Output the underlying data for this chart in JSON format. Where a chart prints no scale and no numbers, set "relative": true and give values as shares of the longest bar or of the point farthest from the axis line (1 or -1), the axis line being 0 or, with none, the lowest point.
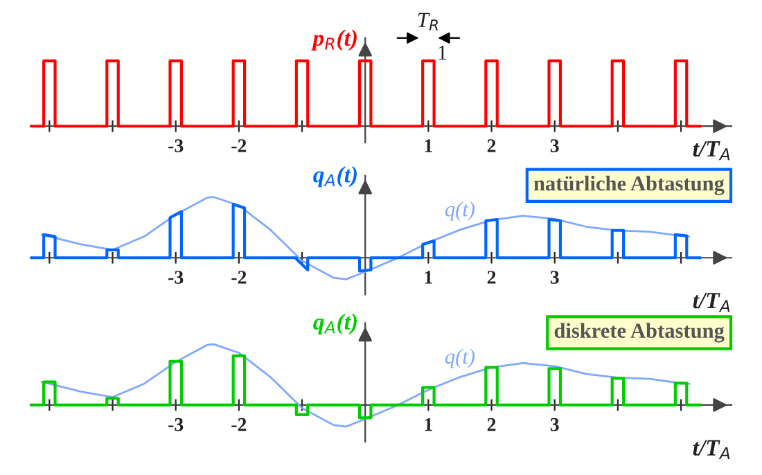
{
  "chart_data": [
    {
      "type": "line",
      "relative": true,
      "ylabel": "p$_{R}$(t)",
      "xlabel": "t/T$_{A}$",
      "xlim": [
        -5.3,
        5.8
      ],
      "xticks": [
        {
          "value": -5,
          "label": null
        },
        {
          "value": -4,
          "label": null
        },
        {
          "value": -3,
          "label": "-3"
        },
        {
          "value": -2,
          "label": "-2"
        },
        {
          "value": -1,
          "label": null
        },
        1,
        2,
        3,
        {
          "value": 4,
          "label": null
        },
        {
          "value": 5,
          "label": null
        }
      ],
      "annotations": [
        "T$_{R}$",
        "1"
      ],
      "series": [
        {
          "color": "#ff0000",
          "x": [
            -5.3,
            -5.09,
            -5.09,
            -4.91,
            -4.91,
            -4.09,
            -4.09,
            -3.91,
            -3.91,
            -3.09,
            -3.09,
            -2.91,
            -2.91,
            -2.09,
            -2.09,
            -1.91,
            -1.91,
            -1.09,
            -1.09,
            -0.91,
            -0.91,
            -0.09,
            -0.09,
            0.09,
            0.09,
            0.91,
            0.91,
            1.09,
            1.09,
            1.91,
            1.91,
            2.09,
            2.09,
            2.91,
            2.91,
            3.09,
            3.09,
            3.91,
            3.91,
            4.09,
            4.09,
            4.91,
            4.91,
            5.09,
            5.09,
            5.3
          ],
          "values": [
            0,
            0,
            1,
            1,
            0,
            0,
            1,
            1,
            0,
            0,
            1,
            1,
            0,
            0,
            1,
            1,
            0,
            0,
            1,
            1,
            0,
            0,
            1,
            1,
            0,
            0,
            1,
            1,
            0,
            0,
            1,
            1,
            0,
            0,
            1,
            1,
            0,
            0,
            1,
            1,
            0,
            0,
            1,
            1,
            0,
            0
          ]
        }
      ]
    },
    {
      "type": "line",
      "relative": true,
      "title": "natürliche Abtastung",
      "ylabel": "q$_{A}$(t)",
      "xlabel": "t/T$_{A}$",
      "xlim": [
        -5.3,
        5.8
      ],
      "xticks": [
        {
          "value": -5,
          "label": null
        },
        {
          "value": -4,
          "label": null
        },
        {
          "value": -3,
          "label": "-3"
        },
        {
          "value": -2,
          "label": "-2"
        },
        {
          "value": -1,
          "label": null
        },
        1,
        2,
        3,
        {
          "value": 4,
          "label": null
        },
        {
          "value": 5,
          "label": null
        }
      ],
      "series": [
        {
          "name": "q(t)",
          "color": "#7fa8ff",
          "x": [
            -5.12,
            -5,
            -4.5,
            -4,
            -3.5,
            -3,
            -2.5,
            -2.4,
            -2,
            -1.5,
            -1,
            -0.5,
            -0.3,
            0,
            0.5,
            1,
            1.5,
            2,
            2.5,
            3,
            3.5,
            4,
            4.5,
            5,
            5.13
          ],
          "values": [
            0.38,
            0.35,
            0.22,
            0.13,
            0.35,
            0.71,
            0.99,
            1,
            0.86,
            0.46,
            -0.05,
            -0.33,
            -0.355,
            -0.23,
            -0.01,
            0.25,
            0.46,
            0.62,
            0.69,
            0.64,
            0.51,
            0.45,
            0.43,
            0.36,
            0.35
          ]
        },
        {
          "color": "#0066ff",
          "x": [
            -5.3,
            -5.09,
            -5.09,
            -4.91,
            -4.91,
            -4.09,
            -4.09,
            -3.91,
            -3.91,
            -3.09,
            -3.09,
            -2.91,
            -2.91,
            -2.09,
            -2.09,
            -1.91,
            -1.91,
            -1.09,
            -1.09,
            -0.91,
            -0.91,
            -0.09,
            -0.09,
            0.09,
            0.09,
            0.91,
            0.91,
            1.09,
            1.09,
            1.91,
            1.91,
            2.09,
            2.09,
            2.91,
            2.91,
            3.09,
            3.09,
            3.91,
            3.91,
            4.09,
            4.09,
            4.91,
            4.91,
            5.09,
            5.09,
            5.3
          ],
          "values": [
            0,
            0,
            0.38,
            0.35,
            0,
            0,
            0.13,
            0.13,
            0,
            0,
            0.66,
            0.76,
            0,
            0,
            0.88,
            0.82,
            0,
            0,
            -0.02,
            -0.2,
            0,
            0,
            -0.22,
            -0.2,
            0,
            0,
            0.22,
            0.28,
            0,
            0,
            0.61,
            0.63,
            0,
            0,
            0.63,
            0.61,
            0,
            0,
            0.45,
            0.45,
            0,
            0,
            0.38,
            0.36,
            0,
            0
          ]
        }
      ]
    },
    {
      "type": "line",
      "relative": true,
      "title": "diskrete Abtastung",
      "ylabel": "q$_{A}$(t)",
      "xlabel": "t/T$_{A}$",
      "xlim": [
        -5.3,
        5.8
      ],
      "xticks": [
        {
          "value": -5,
          "label": null
        },
        {
          "value": -4,
          "label": null
        },
        {
          "value": -3,
          "label": "-3"
        },
        {
          "value": -2,
          "label": "-2"
        },
        {
          "value": -1,
          "label": null
        },
        1,
        2,
        3,
        {
          "value": 4,
          "label": null
        },
        {
          "value": 5,
          "label": null
        }
      ],
      "series": [
        {
          "name": "q(t)",
          "color": "#7fa8ff",
          "x": [
            -5.12,
            -5,
            -4.5,
            -4,
            -3.5,
            -3,
            -2.5,
            -2.4,
            -2,
            -1.5,
            -1,
            -0.5,
            -0.3,
            0,
            0.5,
            1,
            1.5,
            2,
            2.5,
            3,
            3.5,
            4,
            4.5,
            5,
            5.13
          ],
          "values": [
            0.38,
            0.35,
            0.22,
            0.13,
            0.35,
            0.71,
            0.99,
            1,
            0.86,
            0.46,
            -0.05,
            -0.33,
            -0.355,
            -0.23,
            -0.01,
            0.25,
            0.46,
            0.62,
            0.69,
            0.64,
            0.51,
            0.45,
            0.43,
            0.36,
            0.35
          ]
        },
        {
          "color": "#00cc00",
          "x": [
            -5.3,
            -5.09,
            -5.09,
            -4.91,
            -4.91,
            -4.09,
            -4.09,
            -3.91,
            -3.91,
            -3.09,
            -3.09,
            -2.91,
            -2.91,
            -2.09,
            -2.09,
            -1.91,
            -1.91,
            -1.09,
            -1.09,
            -0.91,
            -0.91,
            -0.09,
            -0.09,
            0.09,
            0.09,
            0.91,
            0.91,
            1.09,
            1.09,
            1.91,
            1.91,
            2.09,
            2.09,
            2.91,
            2.91,
            3.09,
            3.09,
            3.91,
            3.91,
            4.09,
            4.09,
            4.91,
            4.91,
            5.09,
            5.09,
            5.3
          ],
          "values": [
            0,
            0,
            0.38,
            0.38,
            0,
            0,
            0.11,
            0.11,
            0,
            0,
            0.72,
            0.72,
            0,
            0,
            0.81,
            0.81,
            0,
            0,
            -0.16,
            -0.16,
            0,
            0,
            -0.21,
            -0.21,
            0,
            0,
            0.29,
            0.29,
            0,
            0,
            0.62,
            0.62,
            0,
            0,
            0.6,
            0.6,
            0,
            0,
            0.44,
            0.44,
            0,
            0,
            0.36,
            0.36,
            0,
            0
          ]
        }
      ]
    }
  ]
}
